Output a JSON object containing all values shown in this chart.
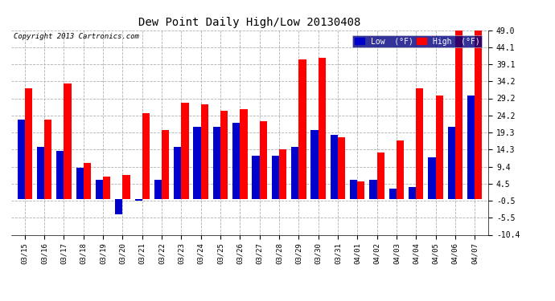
{
  "title": "Dew Point Daily High/Low 20130408",
  "copyright": "Copyright 2013 Cartronics.com",
  "dates": [
    "03/15",
    "03/16",
    "03/17",
    "03/18",
    "03/19",
    "03/20",
    "03/21",
    "03/22",
    "03/23",
    "03/24",
    "03/25",
    "03/26",
    "03/27",
    "03/28",
    "03/29",
    "03/30",
    "03/31",
    "04/01",
    "04/02",
    "04/03",
    "04/04",
    "04/05",
    "04/06",
    "04/07"
  ],
  "high": [
    32.0,
    23.0,
    33.5,
    10.5,
    6.5,
    7.0,
    25.0,
    20.0,
    28.0,
    27.5,
    25.5,
    26.0,
    22.5,
    14.5,
    40.5,
    41.0,
    18.0,
    5.0,
    13.5,
    17.0,
    32.0,
    30.0,
    49.0,
    49.0
  ],
  "low": [
    23.0,
    15.0,
    14.0,
    9.0,
    5.5,
    -4.5,
    -0.5,
    5.5,
    15.0,
    21.0,
    21.0,
    22.0,
    12.5,
    12.5,
    15.0,
    20.0,
    18.5,
    5.5,
    5.5,
    3.0,
    3.5,
    12.0,
    21.0,
    30.0
  ],
  "high_color": "#ff0000",
  "low_color": "#0000cc",
  "ylim": [
    -10.4,
    49.0
  ],
  "yticks": [
    -10.4,
    -5.5,
    -0.5,
    4.5,
    9.4,
    14.3,
    19.3,
    24.2,
    29.2,
    34.2,
    39.1,
    44.1,
    49.0
  ],
  "bg_color": "#ffffff",
  "grid_color": "#b0b0b0",
  "bar_width": 0.38,
  "figwidth": 6.9,
  "figheight": 3.75,
  "dpi": 100
}
